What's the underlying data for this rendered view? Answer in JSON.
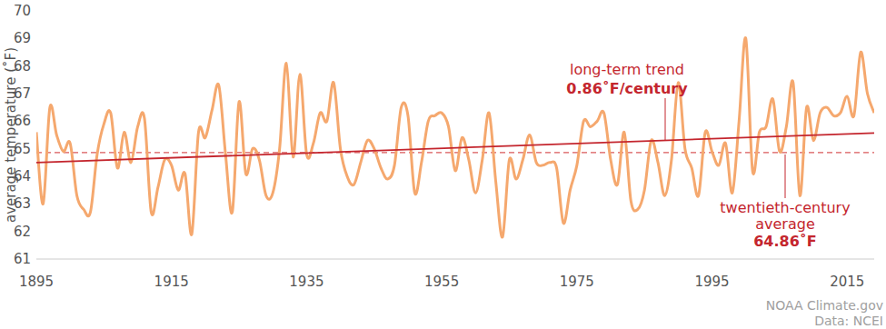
{
  "chart_data": {
    "type": "line",
    "y_label": "average temperature (˚F)",
    "x": [
      1895,
      1896,
      1897,
      1898,
      1899,
      1900,
      1901,
      1902,
      1903,
      1904,
      1905,
      1906,
      1907,
      1908,
      1909,
      1910,
      1911,
      1912,
      1913,
      1914,
      1915,
      1916,
      1917,
      1918,
      1919,
      1920,
      1921,
      1922,
      1923,
      1924,
      1925,
      1926,
      1927,
      1928,
      1929,
      1930,
      1931,
      1932,
      1933,
      1934,
      1935,
      1936,
      1937,
      1938,
      1939,
      1940,
      1941,
      1942,
      1943,
      1944,
      1945,
      1946,
      1947,
      1948,
      1949,
      1950,
      1951,
      1952,
      1953,
      1954,
      1955,
      1956,
      1957,
      1958,
      1959,
      1960,
      1961,
      1962,
      1963,
      1964,
      1965,
      1966,
      1967,
      1968,
      1969,
      1970,
      1971,
      1972,
      1973,
      1974,
      1975,
      1976,
      1977,
      1978,
      1979,
      1980,
      1981,
      1982,
      1983,
      1984,
      1985,
      1986,
      1987,
      1988,
      1989,
      1990,
      1991,
      1992,
      1993,
      1994,
      1995,
      1996,
      1997,
      1998,
      1999,
      2000,
      2001,
      2002,
      2003,
      2004,
      2005,
      2006,
      2007,
      2008,
      2009,
      2010,
      2011,
      2012,
      2013,
      2014,
      2015,
      2016,
      2017,
      2018,
      2019
    ],
    "values": [
      65.6,
      63.0,
      66.5,
      65.5,
      64.9,
      65.2,
      63.3,
      62.8,
      62.7,
      64.8,
      65.9,
      66.3,
      64.3,
      65.6,
      64.5,
      65.8,
      66.1,
      62.7,
      63.6,
      64.6,
      64.4,
      63.5,
      64.1,
      61.9,
      65.6,
      65.4,
      66.4,
      67.3,
      64.8,
      62.7,
      66.7,
      64.1,
      65.0,
      64.6,
      63.3,
      63.4,
      65.0,
      68.1,
      64.7,
      67.7,
      64.8,
      65.2,
      66.3,
      66.0,
      67.4,
      65.0,
      64.0,
      63.7,
      64.5,
      65.3,
      65.0,
      64.3,
      63.9,
      64.4,
      66.5,
      66.2,
      63.4,
      64.5,
      66.0,
      66.2,
      66.3,
      65.8,
      64.2,
      65.4,
      64.6,
      63.4,
      64.6,
      66.3,
      63.8,
      61.8,
      64.6,
      63.9,
      64.6,
      65.5,
      64.5,
      64.4,
      64.5,
      64.3,
      62.3,
      63.5,
      64.4,
      66.0,
      65.8,
      66.0,
      66.3,
      64.6,
      63.7,
      65.6,
      63.1,
      62.8,
      63.5,
      65.3,
      64.5,
      63.3,
      64.6,
      67.4,
      65.0,
      64.3,
      63.3,
      65.6,
      64.9,
      64.4,
      65.2,
      63.4,
      66.0,
      69.0,
      64.2,
      65.6,
      65.8,
      66.8,
      64.9,
      65.8,
      67.4,
      63.3,
      66.5,
      65.3,
      66.3,
      66.5,
      66.2,
      66.3,
      66.9,
      66.2,
      68.5,
      67.0,
      66.3
    ],
    "color": "#f5a86e",
    "xlim": [
      1895,
      2019
    ],
    "xticks": [
      1895,
      1915,
      1935,
      1955,
      1975,
      1995,
      2015
    ],
    "ylim": [
      61,
      70
    ],
    "yticks": [
      61,
      62,
      63,
      64,
      65,
      66,
      67,
      68,
      69,
      70
    ],
    "grid": false,
    "trend": {
      "label": "long-term trend",
      "rate_label": "0.86˚F/century",
      "x": [
        1895,
        2019
      ],
      "values": [
        64.5,
        65.57
      ],
      "color": "#c4262e"
    },
    "average": {
      "label": [
        "twentieth-century",
        "average"
      ],
      "value": 64.86,
      "value_label": "64.86˚F",
      "color": "#d9585a",
      "line_style": "dashed"
    },
    "source": [
      "NOAA Climate.gov",
      "Data: NCEI"
    ]
  }
}
